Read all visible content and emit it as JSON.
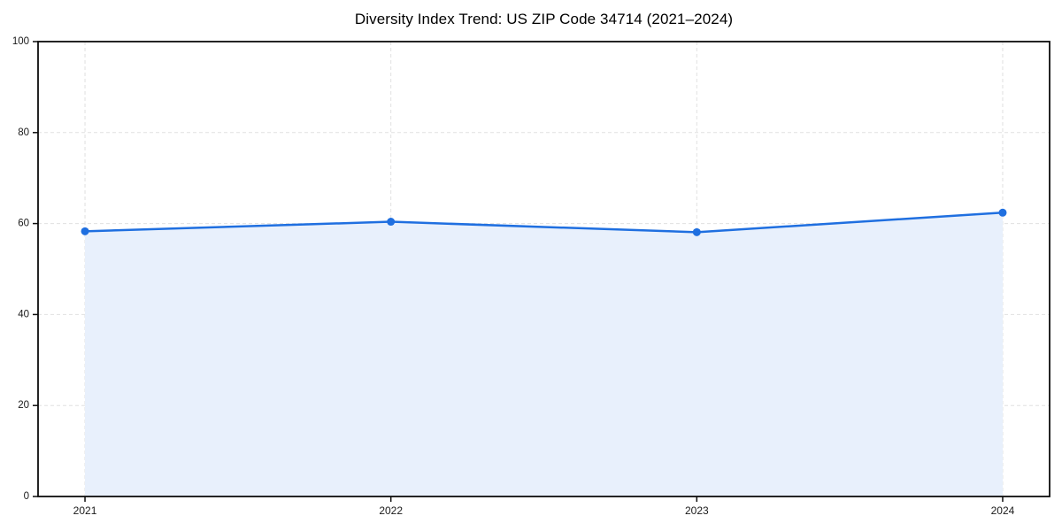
{
  "title": "Diversity Index Trend: US ZIP Code 34714 (2021–2024)",
  "chart_data": {
    "type": "area",
    "title": "Diversity Index Trend: US ZIP Code 34714 (2021–2024)",
    "categories": [
      "2021",
      "2022",
      "2023",
      "2024"
    ],
    "values": [
      58.3,
      60.4,
      58.1,
      62.4
    ],
    "xlabel": "",
    "ylabel": "",
    "ylim": [
      0,
      100
    ],
    "yticks": [
      0,
      20,
      40,
      60,
      80,
      100
    ],
    "grid": "dashed",
    "legend": "none",
    "colors": {
      "line": "#1f6fe0",
      "marker": "#1f6fe0",
      "fill": "#e8f0fc",
      "grid": "#e0e0e0",
      "axis": "#0d0d0d",
      "text": "#1a1a1a",
      "background": "#ffffff"
    }
  }
}
